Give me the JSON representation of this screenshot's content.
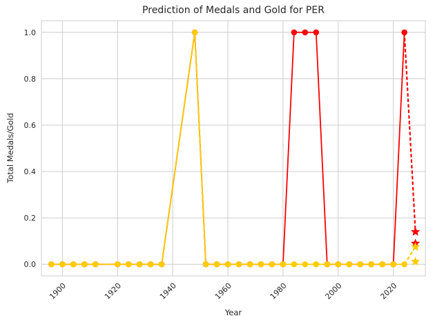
{
  "chart_data": {
    "type": "line",
    "title": "Prediction of Medals and Gold for PER",
    "xlabel": "Year",
    "ylabel": "Total Medals/Gold",
    "xlim": [
      1892.4,
      2031.6
    ],
    "ylim": [
      -0.05,
      1.05
    ],
    "x_ticks": [
      1900,
      1920,
      1940,
      1960,
      1980,
      2000,
      2020
    ],
    "y_ticks": [
      0.0,
      0.2,
      0.4,
      0.6,
      0.8,
      1.0
    ],
    "x_tick_rotation": 45,
    "grid": true,
    "legend": "none",
    "series": [
      {
        "role": "total-medals",
        "color": "#ff0000",
        "marker": "circle",
        "x": [
          1896,
          1900,
          1904,
          1908,
          1912,
          1920,
          1924,
          1928,
          1932,
          1936,
          1948,
          1952,
          1956,
          1960,
          1964,
          1968,
          1972,
          1976,
          1980,
          1984,
          1988,
          1992,
          1996,
          2000,
          2004,
          2008,
          2012,
          2016,
          2020,
          2024
        ],
        "y": [
          0,
          0,
          0,
          0,
          0,
          0,
          0,
          0,
          0,
          0,
          1,
          0,
          0,
          0,
          0,
          0,
          0,
          0,
          0,
          1,
          1,
          1,
          0,
          0,
          0,
          0,
          0,
          0,
          0,
          1
        ]
      },
      {
        "role": "gold-medals",
        "color": "#ffcc00",
        "marker": "circle",
        "x": [
          1896,
          1900,
          1904,
          1908,
          1912,
          1920,
          1924,
          1928,
          1932,
          1936,
          1948,
          1952,
          1956,
          1960,
          1964,
          1968,
          1972,
          1976,
          1980,
          1984,
          1988,
          1992,
          1996,
          2000,
          2004,
          2008,
          2012,
          2016,
          2020,
          2024
        ],
        "y": [
          0,
          0,
          0,
          0,
          0,
          0,
          0,
          0,
          0,
          0,
          1,
          0,
          0,
          0,
          0,
          0,
          0,
          0,
          0,
          0,
          0,
          0,
          0,
          0,
          0,
          0,
          0,
          0,
          0,
          0
        ]
      }
    ],
    "predictions": [
      {
        "role": "total-medals",
        "color": "#ff0000",
        "from": [
          2024,
          1
        ],
        "points": [
          [
            2028,
            0.14
          ],
          [
            2028,
            0.09
          ]
        ]
      },
      {
        "role": "gold-medals",
        "color": "#ffcc00",
        "from": [
          2024,
          0
        ],
        "points": [
          [
            2028,
            0.075
          ],
          [
            2028,
            0.012
          ]
        ]
      }
    ]
  }
}
